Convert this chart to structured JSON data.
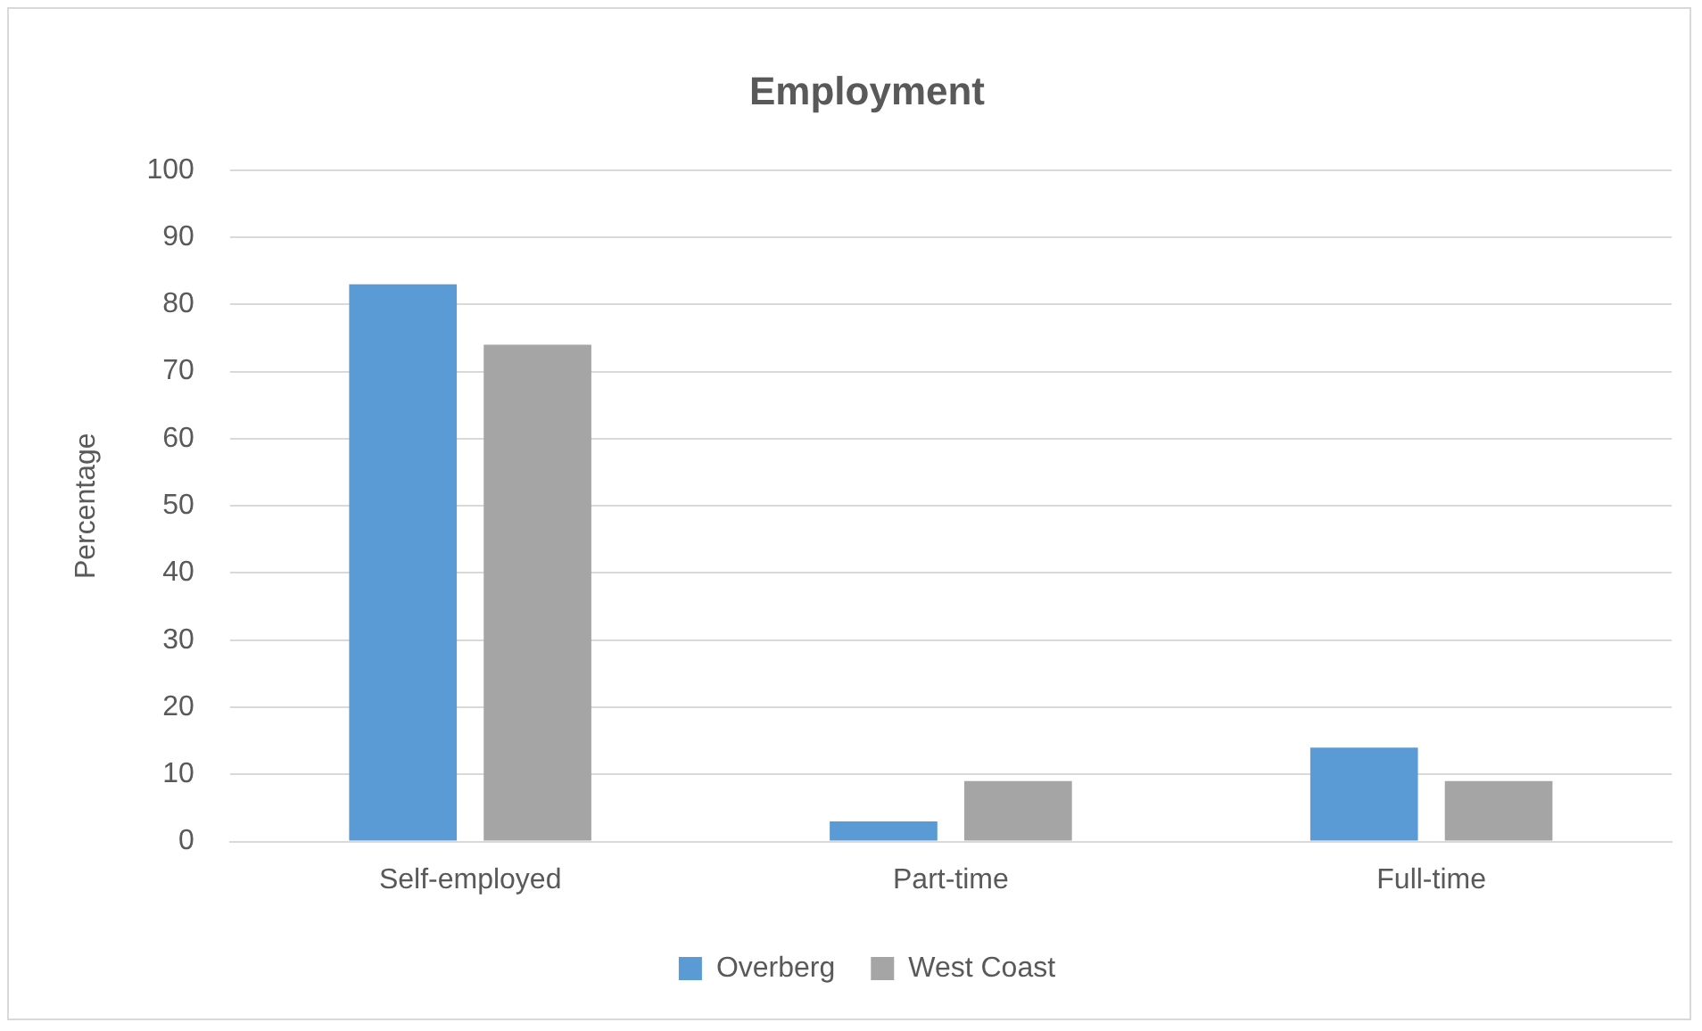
{
  "chart_data": {
    "type": "bar",
    "title": "Employment",
    "ylabel": "Percentage",
    "categories": [
      "Self-employed",
      "Part-time",
      "Full-time"
    ],
    "series": [
      {
        "name": "Overberg",
        "color": "#5b9bd5",
        "values": [
          83,
          3,
          14
        ]
      },
      {
        "name": "West Coast",
        "color": "#a5a5a5",
        "values": [
          74,
          9,
          9
        ]
      }
    ],
    "ylim": [
      0,
      100
    ],
    "yticks": [
      0,
      10,
      20,
      30,
      40,
      50,
      60,
      70,
      80,
      90,
      100
    ],
    "grid": "y",
    "legend": "bottom"
  }
}
